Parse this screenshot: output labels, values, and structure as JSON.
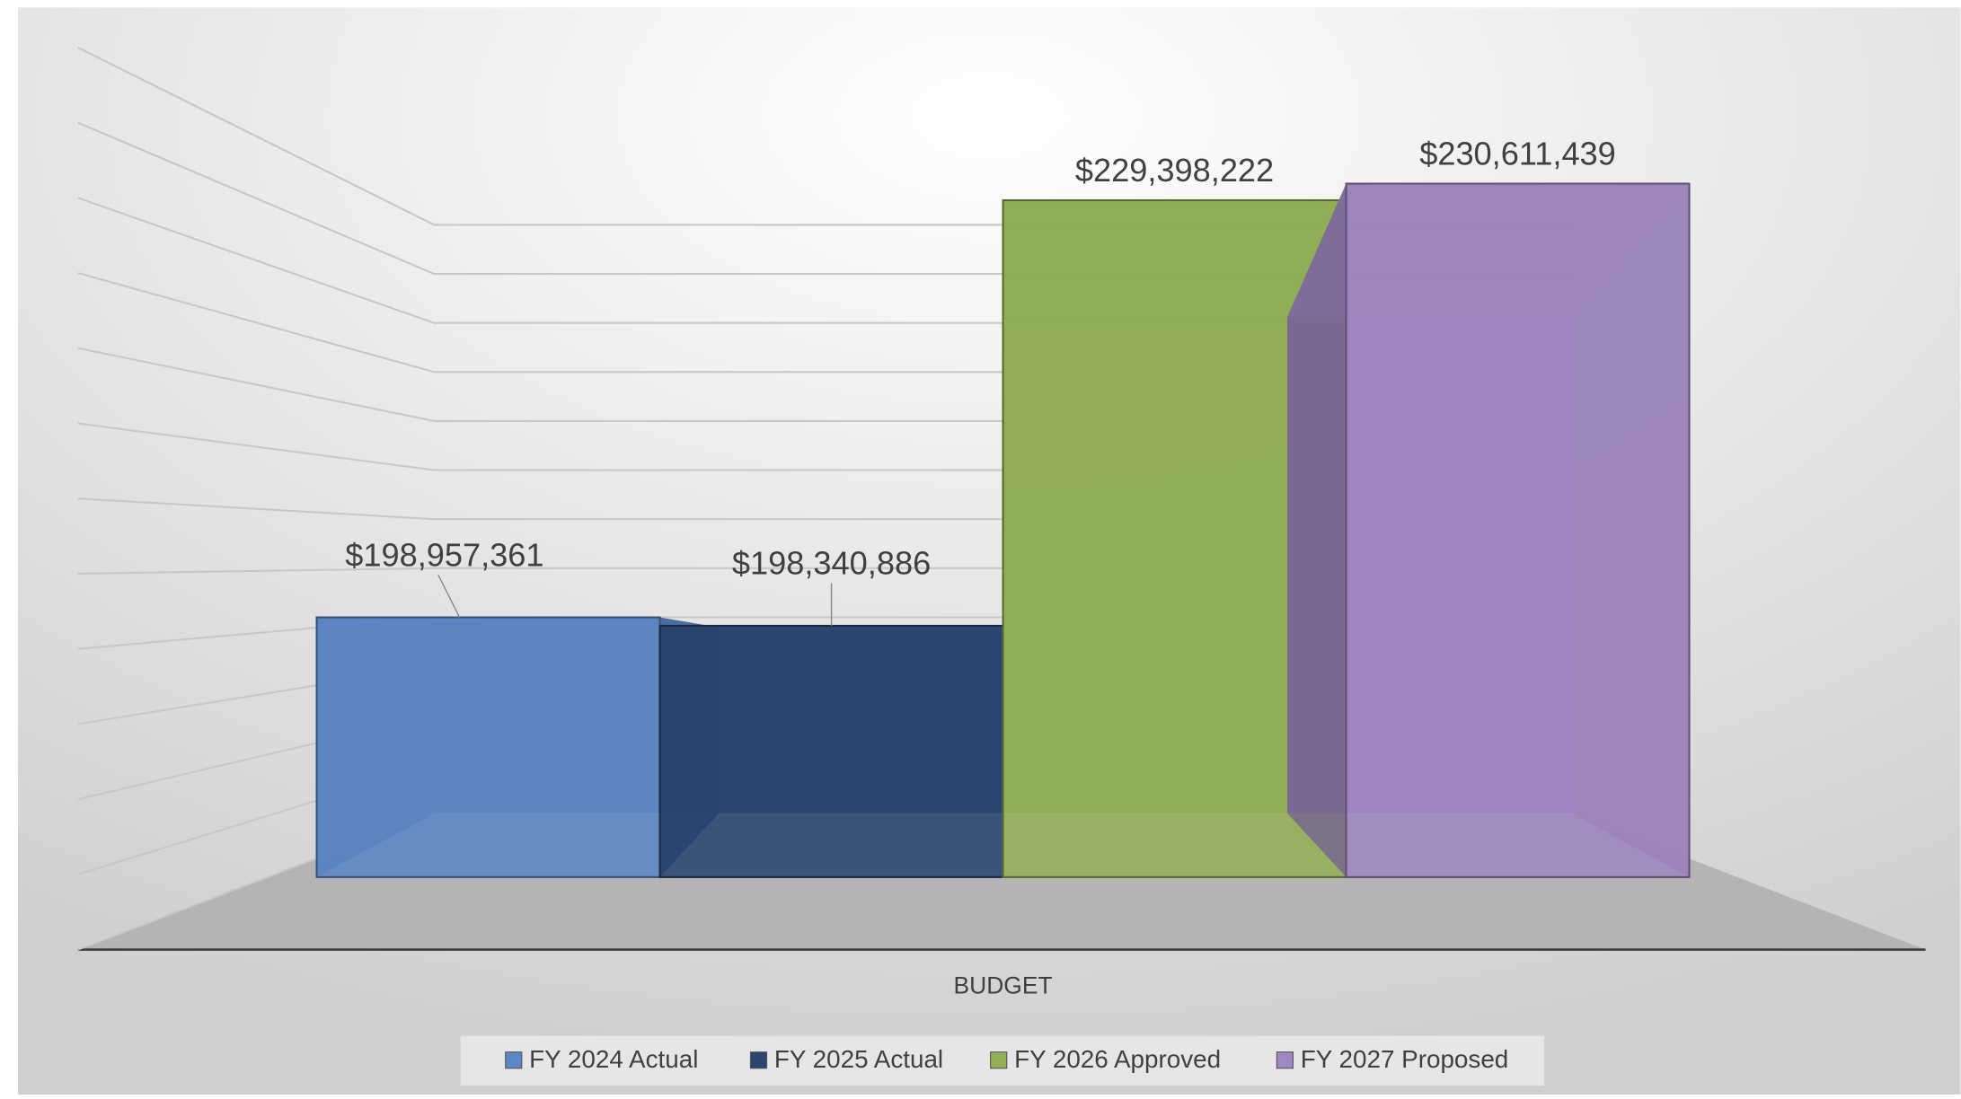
{
  "chart_data": {
    "type": "bar3d",
    "categories": [
      "BUDGET"
    ],
    "series": [
      {
        "name": "FY 2024 Actual",
        "color": "#5b87c5",
        "values": [
          198957361
        ],
        "value_labels": [
          "$198,957,361"
        ]
      },
      {
        "name": "FY 2025 Actual",
        "color": "#2a4670",
        "values": [
          198340886
        ],
        "value_labels": [
          "$198,340,886"
        ]
      },
      {
        "name": "FY 2026 Approved",
        "color": "#92b155",
        "values": [
          229398222
        ],
        "value_labels": [
          "$229,398,222"
        ]
      },
      {
        "name": "FY 2027 Proposed",
        "color": "#a086c2",
        "values": [
          230611439
        ],
        "value_labels": [
          "$230,611,439"
        ]
      }
    ],
    "ylim": [
      180000000,
      240000000
    ],
    "yticks": [
      180000000,
      185000000,
      190000000,
      195000000,
      200000000,
      205000000,
      210000000,
      215000000,
      220000000,
      225000000,
      230000000,
      235000000,
      240000000
    ],
    "grid": true,
    "legend": "bottom"
  }
}
